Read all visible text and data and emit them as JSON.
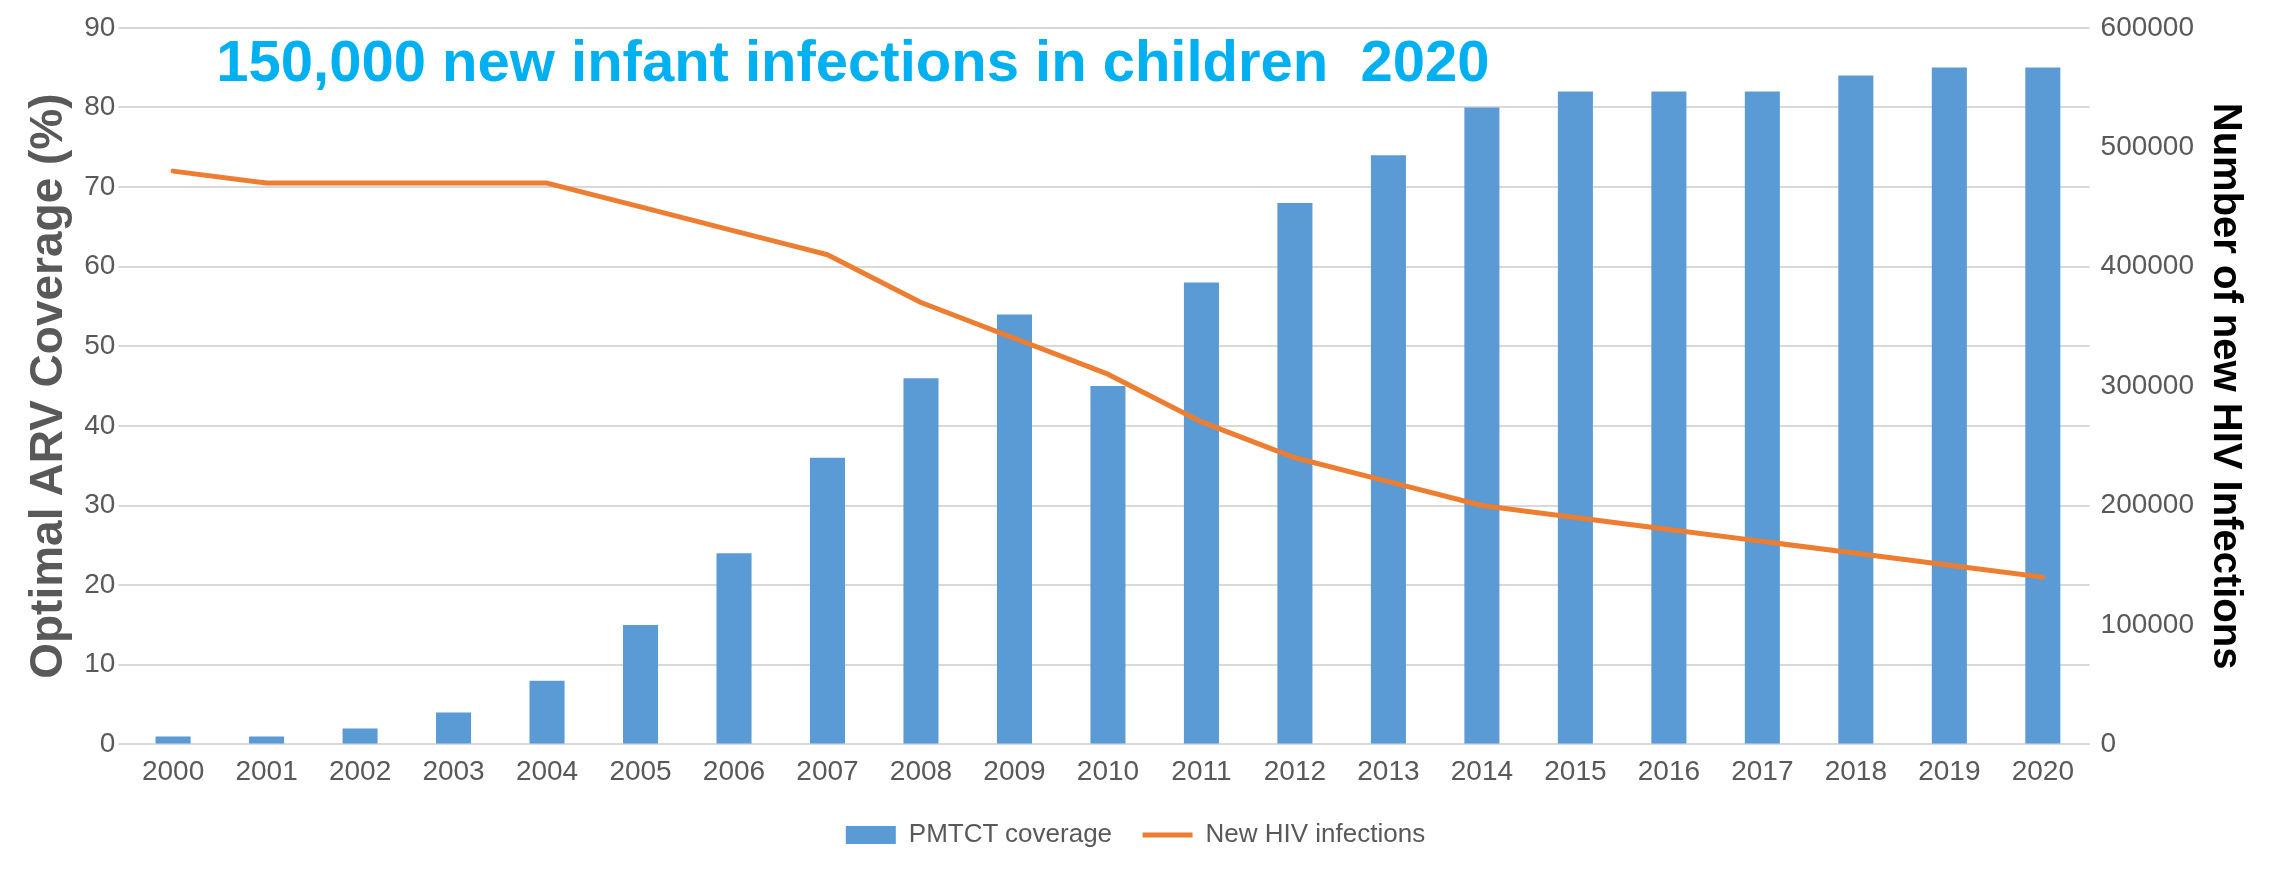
{
  "chart_data": {
    "type": "bar",
    "title": "150,000 new infant infections in children  2020",
    "ylabel": "Optimal ARV Coverage (%)",
    "y2label": "Number of new HIV Infections",
    "categories": [
      "2000",
      "2001",
      "2002",
      "2003",
      "2004",
      "2005",
      "2006",
      "2007",
      "2008",
      "2009",
      "2010",
      "2011",
      "2012",
      "2013",
      "2014",
      "2015",
      "2016",
      "2017",
      "2018",
      "2019",
      "2020"
    ],
    "series": [
      {
        "name": "PMTCT coverage",
        "color": "#5b9bd5",
        "values": [
          1,
          1,
          2,
          4,
          8,
          15,
          24,
          36,
          46,
          54,
          45,
          58,
          68,
          74,
          80,
          82,
          82,
          82,
          84,
          85,
          85
        ]
      },
      {
        "name": "New HIV infections",
        "type": "line",
        "axis": "y2",
        "color": "#ed7d31",
        "values": [
          480000,
          470000,
          470000,
          470000,
          470000,
          450000,
          430000,
          410000,
          370000,
          340000,
          310000,
          270000,
          240000,
          220000,
          200000,
          190000,
          180000,
          170000,
          160000,
          150000,
          140000
        ]
      }
    ],
    "ylim": [
      0,
      90
    ],
    "yticks": [
      0,
      10,
      20,
      30,
      40,
      50,
      60,
      70,
      80,
      90
    ],
    "y2lim": [
      0,
      600000
    ],
    "y2ticks": [
      0,
      100000,
      200000,
      300000,
      400000,
      500000,
      600000
    ],
    "grid": "y",
    "legend": "bottom",
    "marker": "none",
    "line_style": "solid"
  }
}
